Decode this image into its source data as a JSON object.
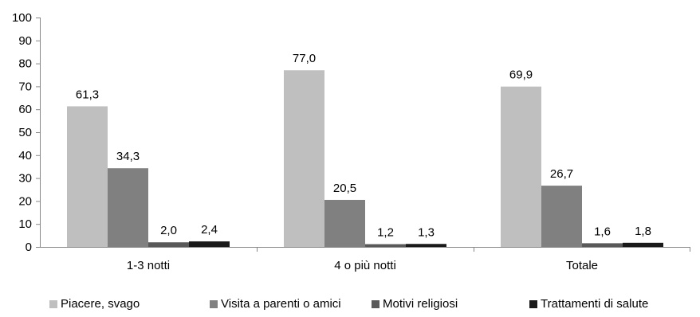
{
  "chart_data": {
    "type": "bar",
    "title": "",
    "xlabel": "",
    "ylabel": "",
    "ylim": [
      0,
      100
    ],
    "yticks": [
      "0",
      "10",
      "20",
      "30",
      "40",
      "50",
      "60",
      "70",
      "80",
      "90",
      "100"
    ],
    "categories": [
      "1-3 notti",
      "4 o più notti",
      "Totale"
    ],
    "series": [
      {
        "name": "Piacere, svago",
        "color": "#bfbfbf",
        "values": [
          61.3,
          77.0,
          69.9
        ],
        "labels": [
          "61,3",
          "77,0",
          "69,9"
        ]
      },
      {
        "name": "Visita a parenti o amici",
        "color": "#808080",
        "values": [
          34.3,
          20.5,
          26.7
        ],
        "labels": [
          "34,3",
          "20,5",
          "26,7"
        ]
      },
      {
        "name": "Motivi religiosi",
        "color": "#595959",
        "values": [
          2.0,
          1.2,
          1.6
        ],
        "labels": [
          "2,0",
          "1,2",
          "1,6"
        ]
      },
      {
        "name": "Trattamenti di salute",
        "color": "#1a1a1a",
        "values": [
          2.4,
          1.3,
          1.8
        ],
        "labels": [
          "2,4",
          "1,3",
          "1,8"
        ]
      }
    ],
    "grid": false,
    "legend_position": "bottom"
  }
}
